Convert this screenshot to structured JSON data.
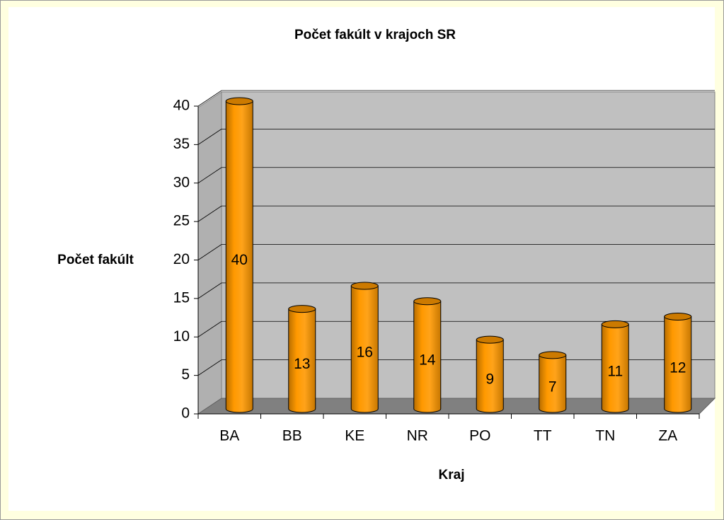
{
  "chart_data": {
    "type": "bar",
    "title": "Počet fakúlt v krajoch SR",
    "xlabel": "Kraj",
    "ylabel": "Počet fakúlt",
    "categories": [
      "BA",
      "BB",
      "KE",
      "NR",
      "PO",
      "TT",
      "TN",
      "ZA"
    ],
    "values": [
      40,
      13,
      16,
      14,
      9,
      7,
      11,
      12
    ],
    "color": "#ff9900",
    "ylim": [
      0,
      40
    ],
    "yticks": [
      0,
      5,
      10,
      15,
      20,
      25,
      30,
      35,
      40
    ],
    "grid": true
  }
}
